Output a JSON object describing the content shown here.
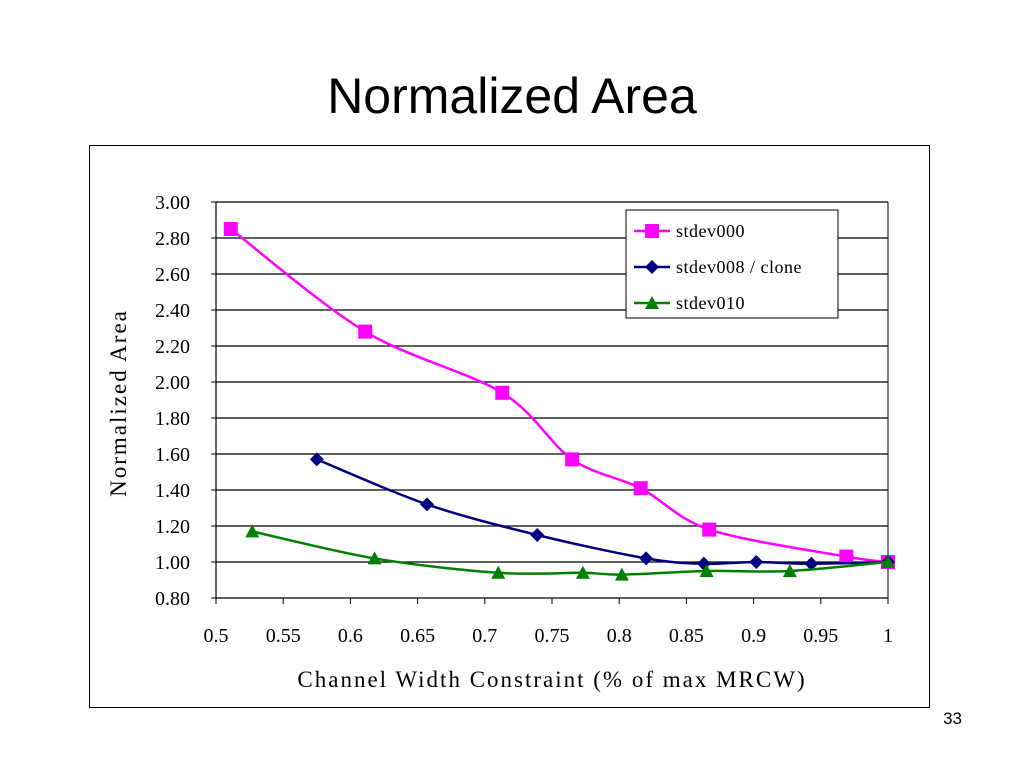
{
  "slide": {
    "title": "Normalized Area",
    "page_number": "33"
  },
  "chart_data": {
    "type": "line",
    "title": "",
    "xlabel": "Channel Width Constraint (% of max MRCW)",
    "ylabel": "Normalized Area",
    "xlim": [
      0.5,
      1.0
    ],
    "ylim": [
      0.8,
      3.0
    ],
    "x_ticks": [
      "0.5",
      "0.55",
      "0.6",
      "0.65",
      "0.7",
      "0.75",
      "0.8",
      "0.85",
      "0.9",
      "0.95",
      "1"
    ],
    "y_ticks": [
      "0.80",
      "1.00",
      "1.20",
      "1.40",
      "1.60",
      "1.80",
      "2.00",
      "2.20",
      "2.40",
      "2.60",
      "2.80",
      "3.00"
    ],
    "grid": "horizontal",
    "legend_position": "top-right",
    "series": [
      {
        "name": "stdev000",
        "color": "#ff00ff",
        "marker": "square",
        "x": [
          0.511,
          0.611,
          0.713,
          0.765,
          0.816,
          0.867,
          0.969,
          1.0
        ],
        "y": [
          2.85,
          2.28,
          1.94,
          1.57,
          1.41,
          1.18,
          1.03,
          1.0
        ]
      },
      {
        "name": "stdev008 / clone",
        "color": "#000080",
        "marker": "diamond",
        "x": [
          0.575,
          0.657,
          0.739,
          0.82,
          0.863,
          0.902,
          0.943,
          1.0
        ],
        "y": [
          1.57,
          1.32,
          1.15,
          1.02,
          0.99,
          1.0,
          0.99,
          1.0
        ]
      },
      {
        "name": "stdev010",
        "color": "#008000",
        "marker": "triangle",
        "x": [
          0.527,
          0.618,
          0.71,
          0.773,
          0.802,
          0.865,
          0.927,
          1.0
        ],
        "y": [
          1.17,
          1.02,
          0.94,
          0.94,
          0.93,
          0.95,
          0.95,
          1.0
        ]
      }
    ]
  }
}
